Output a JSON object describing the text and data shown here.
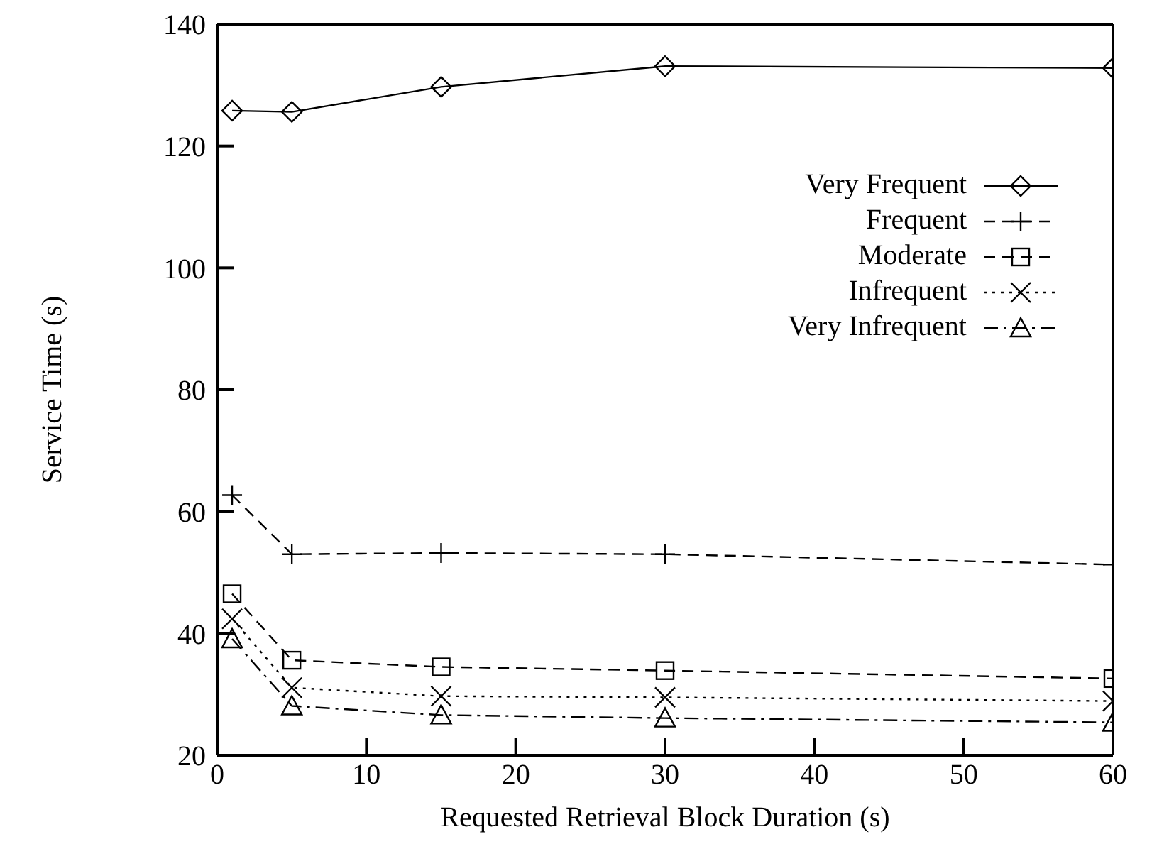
{
  "chart_data": {
    "type": "line",
    "xlabel": "Requested Retrieval Block Duration (s)",
    "ylabel": "Service Time (s)",
    "x": [
      1,
      5,
      15,
      30,
      60
    ],
    "xlim": [
      0,
      60
    ],
    "xticks": [
      0,
      10,
      20,
      30,
      40,
      50,
      60
    ],
    "ylim": [
      20,
      140
    ],
    "yticks": [
      20,
      40,
      60,
      80,
      100,
      120,
      140
    ],
    "legend": "top right",
    "series": [
      {
        "name": "Very Frequent",
        "color": "#000000",
        "marker": "diamond",
        "line_style": "solid",
        "values": [
          125.8,
          125.6,
          129.7,
          133.1,
          132.8
        ]
      },
      {
        "name": "Frequent",
        "color": "#000000",
        "marker": "plus",
        "line_style": "dashed",
        "values": [
          62.7,
          53.0,
          53.2,
          53.0,
          51.3
        ]
      },
      {
        "name": "Moderate",
        "color": "#000000",
        "marker": "square",
        "line_style": "dashed",
        "values": [
          46.5,
          35.6,
          34.5,
          33.9,
          32.6
        ]
      },
      {
        "name": "Infrequent",
        "color": "#000000",
        "marker": "cross",
        "line_style": "dotted",
        "values": [
          42.4,
          31.1,
          29.7,
          29.5,
          28.9
        ]
      },
      {
        "name": "Very Infrequent",
        "color": "#000000",
        "marker": "triangle",
        "line_style": "dashdot",
        "values": [
          39.1,
          28.1,
          26.6,
          26.1,
          25.4
        ]
      }
    ]
  }
}
